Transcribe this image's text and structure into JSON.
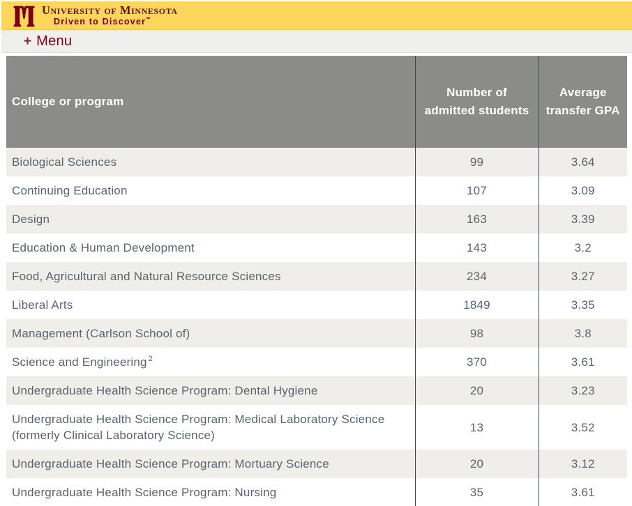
{
  "banner": {
    "wordmark": "University of Minnesota",
    "tagline": "Driven to Discover",
    "tagline_mark": "℠",
    "colors": {
      "gold": "#fed65c",
      "maroon": "#7a0019"
    }
  },
  "menu": {
    "icon": "+",
    "label": "Menu"
  },
  "table": {
    "headers": [
      "College or program",
      "Number of admitted students",
      "Average transfer GPA"
    ],
    "rows": [
      {
        "program": "Biological Sciences",
        "admitted": "99",
        "gpa": "3.64"
      },
      {
        "program": "Continuing Education",
        "admitted": "107",
        "gpa": "3.09"
      },
      {
        "program": "Design",
        "admitted": "163",
        "gpa": "3.39"
      },
      {
        "program": "Education & Human Development",
        "admitted": "143",
        "gpa": "3.2"
      },
      {
        "program": "Food, Agricultural and Natural Resource Sciences",
        "admitted": "234",
        "gpa": "3.27"
      },
      {
        "program": "Liberal Arts",
        "admitted": "1849",
        "gpa": "3.35"
      },
      {
        "program": "Management (Carlson School of)",
        "admitted": "98",
        "gpa": "3.8"
      },
      {
        "program": "Science and Engineering",
        "footnote": "2",
        "admitted": "370",
        "gpa": "3.61"
      },
      {
        "program": "Undergraduate Health Science Program: Dental Hygiene",
        "admitted": "20",
        "gpa": "3.23"
      },
      {
        "program": "Undergraduate Health Science Program: Medical Laboratory Science (formerly Clinical Laboratory Science)",
        "admitted": "13",
        "gpa": "3.52"
      },
      {
        "program": "Undergraduate Health Science Program: Mortuary Science",
        "admitted": "20",
        "gpa": "3.12"
      },
      {
        "program": "Undergraduate Health Science Program: Nursing",
        "admitted": "35",
        "gpa": "3.61"
      }
    ]
  }
}
